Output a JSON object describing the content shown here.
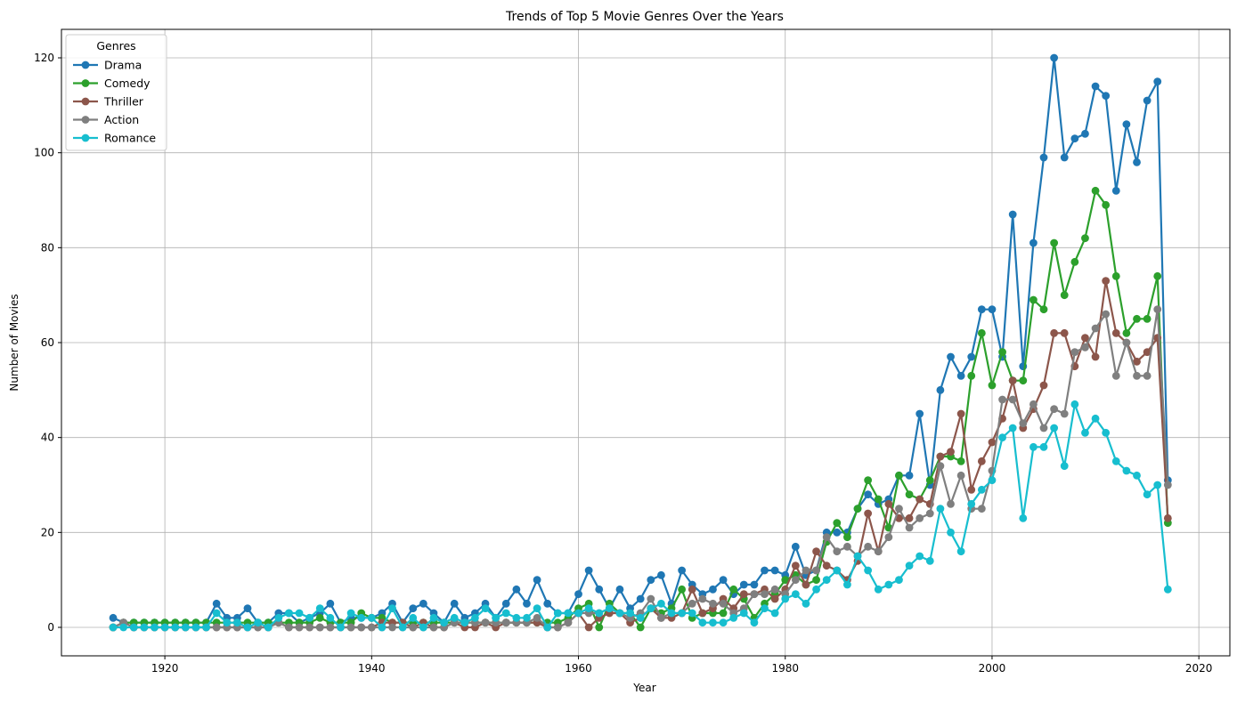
{
  "chart_data": {
    "type": "line",
    "title": "Trends of Top 5 Movie Genres Over the Years",
    "xlabel": "Year",
    "ylabel": "Number of Movies",
    "xlim": [
      1910,
      2023
    ],
    "ylim": [
      -6,
      126
    ],
    "xticks": [
      1920,
      1940,
      1960,
      1980,
      2000,
      2020
    ],
    "yticks": [
      0,
      20,
      40,
      60,
      80,
      100,
      120
    ],
    "grid": true,
    "legend": {
      "title": "Genres",
      "placement": "top-left"
    },
    "x": [
      1915,
      1916,
      1917,
      1918,
      1919,
      1920,
      1921,
      1922,
      1923,
      1924,
      1925,
      1926,
      1927,
      1928,
      1929,
      1930,
      1931,
      1932,
      1933,
      1934,
      1935,
      1936,
      1937,
      1938,
      1939,
      1940,
      1941,
      1942,
      1943,
      1944,
      1945,
      1946,
      1947,
      1948,
      1949,
      1950,
      1951,
      1952,
      1953,
      1954,
      1955,
      1956,
      1957,
      1958,
      1959,
      1960,
      1961,
      1962,
      1963,
      1964,
      1965,
      1966,
      1967,
      1968,
      1969,
      1970,
      1971,
      1972,
      1973,
      1974,
      1975,
      1976,
      1977,
      1978,
      1979,
      1980,
      1981,
      1982,
      1983,
      1984,
      1985,
      1986,
      1987,
      1988,
      1989,
      1990,
      1991,
      1992,
      1993,
      1994,
      1995,
      1996,
      1997,
      1998,
      1999,
      2000,
      2001,
      2002,
      2003,
      2004,
      2005,
      2006,
      2007,
      2008,
      2009,
      2010,
      2011,
      2012,
      2013,
      2014,
      2015,
      2016,
      2017
    ],
    "series": [
      {
        "name": "Drama",
        "color": "#1f77b4",
        "values": [
          2,
          1,
          1,
          1,
          1,
          1,
          1,
          1,
          1,
          1,
          5,
          2,
          2,
          4,
          1,
          1,
          3,
          3,
          1,
          2,
          3,
          5,
          1,
          2,
          2,
          2,
          3,
          5,
          1,
          4,
          5,
          3,
          1,
          5,
          2,
          3,
          5,
          2,
          5,
          8,
          5,
          10,
          5,
          3,
          3,
          7,
          12,
          8,
          4,
          8,
          4,
          6,
          10,
          11,
          5,
          12,
          9,
          7,
          8,
          10,
          7,
          9,
          9,
          12,
          12,
          11,
          17,
          11,
          12,
          20,
          20,
          20,
          25,
          28,
          26,
          27,
          32,
          32,
          45,
          30,
          50,
          57,
          53,
          57,
          67,
          67,
          57,
          87,
          55,
          81,
          99,
          120,
          99,
          103,
          104,
          114,
          112,
          92,
          106,
          98,
          111,
          115,
          31
        ]
      },
      {
        "name": "Comedy",
        "color": "#2ca02c",
        "values": [
          0,
          1,
          1,
          1,
          1,
          1,
          1,
          1,
          1,
          1,
          1,
          1,
          1,
          1,
          1,
          1,
          1,
          1,
          1,
          1,
          2,
          1,
          1,
          1,
          3,
          2,
          2,
          1,
          1,
          1,
          1,
          1,
          1,
          1,
          1,
          1,
          1,
          1,
          1,
          1,
          1,
          1,
          1,
          1,
          2,
          4,
          5,
          0,
          5,
          3,
          3,
          0,
          4,
          3,
          4,
          8,
          2,
          3,
          3,
          3,
          8,
          6,
          2,
          5,
          7,
          10,
          11,
          9,
          10,
          18,
          22,
          19,
          25,
          31,
          27,
          21,
          32,
          28,
          27,
          31,
          36,
          36,
          35,
          53,
          62,
          51,
          58,
          52,
          52,
          69,
          67,
          81,
          70,
          77,
          82,
          92,
          89,
          74,
          62,
          65,
          65,
          74,
          22
        ]
      },
      {
        "name": "Thriller",
        "color": "#8c564b",
        "values": [
          0,
          1,
          0,
          0,
          0,
          0,
          0,
          0,
          0,
          0,
          0,
          0,
          0,
          0,
          0,
          0,
          1,
          0,
          0,
          0,
          0,
          0,
          0,
          0,
          0,
          0,
          1,
          1,
          1,
          0,
          1,
          0,
          0,
          1,
          0,
          0,
          1,
          0,
          1,
          1,
          1,
          1,
          0,
          0,
          1,
          3,
          0,
          2,
          3,
          3,
          1,
          2,
          4,
          2,
          2,
          3,
          8,
          3,
          4,
          6,
          4,
          7,
          7,
          8,
          6,
          8,
          13,
          9,
          16,
          13,
          12,
          10,
          14,
          24,
          16,
          26,
          23,
          23,
          27,
          26,
          36,
          37,
          45,
          29,
          35,
          39,
          44,
          52,
          42,
          46,
          51,
          62,
          62,
          55,
          61,
          57,
          73,
          62,
          60,
          56,
          58,
          61,
          23
        ]
      },
      {
        "name": "Action",
        "color": "#7f7f7f",
        "values": [
          0,
          1,
          0,
          0,
          0,
          0,
          0,
          0,
          0,
          0,
          0,
          0,
          0,
          0,
          0,
          0,
          1,
          0,
          0,
          0,
          0,
          0,
          0,
          0,
          0,
          0,
          0,
          0,
          0,
          0,
          0,
          0,
          0,
          1,
          1,
          1,
          1,
          1,
          1,
          1,
          1,
          2,
          0,
          0,
          1,
          3,
          3,
          3,
          4,
          3,
          2,
          3,
          6,
          2,
          3,
          3,
          5,
          6,
          5,
          5,
          3,
          4,
          7,
          7,
          8,
          7,
          10,
          12,
          12,
          19,
          16,
          17,
          15,
          17,
          16,
          19,
          25,
          21,
          23,
          24,
          34,
          26,
          32,
          25,
          25,
          33,
          48,
          48,
          43,
          47,
          42,
          46,
          45,
          58,
          59,
          63,
          66,
          53,
          60,
          53,
          53,
          67,
          30
        ]
      },
      {
        "name": "Romance",
        "color": "#17becf",
        "values": [
          0,
          0,
          0,
          0,
          0,
          0,
          0,
          0,
          0,
          0,
          3,
          1,
          1,
          0,
          1,
          0,
          2,
          3,
          3,
          2,
          4,
          2,
          0,
          3,
          2,
          2,
          0,
          4,
          0,
          2,
          0,
          2,
          1,
          2,
          1,
          2,
          4,
          2,
          3,
          2,
          2,
          4,
          0,
          3,
          3,
          3,
          4,
          3,
          4,
          3,
          3,
          2,
          4,
          5,
          3,
          3,
          3,
          1,
          1,
          1,
          2,
          3,
          1,
          4,
          3,
          6,
          7,
          5,
          8,
          10,
          12,
          9,
          15,
          12,
          8,
          9,
          10,
          13,
          15,
          14,
          25,
          20,
          16,
          26,
          29,
          31,
          40,
          42,
          23,
          38,
          38,
          42,
          34,
          47,
          41,
          44,
          41,
          35,
          33,
          32,
          28,
          30,
          8
        ]
      }
    ]
  }
}
